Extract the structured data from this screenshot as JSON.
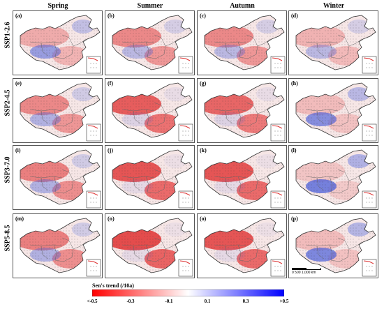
{
  "seasons": [
    "Spring",
    "Summer",
    "Autumn",
    "Winter"
  ],
  "scenarios": [
    "SSP1-2.6",
    "SSP2-4.5",
    "SSP3-7.0",
    "SSP5-8.5"
  ],
  "panels": [
    {
      "label": "(a)",
      "red": 0.35,
      "blue": 0.55
    },
    {
      "label": "(b)",
      "red": 0.55,
      "blue": 0.35
    },
    {
      "label": "(c)",
      "red": 0.55,
      "blue": 0.35
    },
    {
      "label": "(d)",
      "red": 0.3,
      "blue": 0.35
    },
    {
      "label": "(e)",
      "red": 0.55,
      "blue": 0.4
    },
    {
      "label": "(f)",
      "red": 0.8,
      "blue": 0.15
    },
    {
      "label": "(g)",
      "red": 0.75,
      "blue": 0.15
    },
    {
      "label": "(h)",
      "red": 0.25,
      "blue": 0.65
    },
    {
      "label": "(i)",
      "red": 0.6,
      "blue": 0.4
    },
    {
      "label": "(j)",
      "red": 0.85,
      "blue": 0.1
    },
    {
      "label": "(k)",
      "red": 0.85,
      "blue": 0.1
    },
    {
      "label": "(l)",
      "red": 0.2,
      "blue": 0.75
    },
    {
      "label": "(m)",
      "red": 0.6,
      "blue": 0.4
    },
    {
      "label": "(n)",
      "red": 0.9,
      "blue": 0.1
    },
    {
      "label": "(o)",
      "red": 0.85,
      "blue": 0.1
    },
    {
      "label": "(p)",
      "red": 0.25,
      "blue": 0.7
    }
  ],
  "scalebar": "500 1,000 km",
  "scalebar_zero": "0",
  "colorbar": {
    "title": "Sen's trend (/10a)",
    "ticks": [
      "<-0.5",
      "-0.3",
      "-0.1",
      "0.1",
      "0.3",
      ">0.5"
    ],
    "colors": [
      "#ff0000",
      "#ff7f7f",
      "#ffffff",
      "#8080ff",
      "#0000ff"
    ]
  }
}
